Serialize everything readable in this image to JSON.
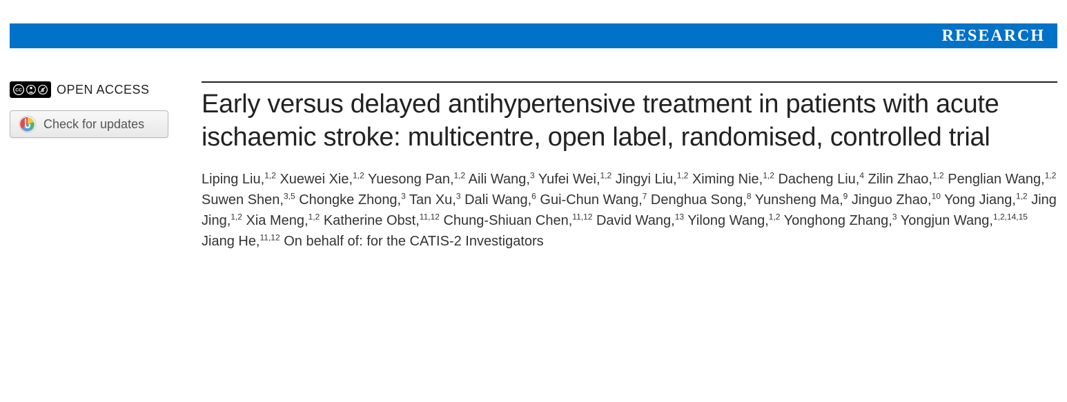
{
  "banner": {
    "label": "RESEARCH",
    "bg_color": "#0072c7",
    "text_color": "#ffffff"
  },
  "sidebar": {
    "open_access_label": "OPEN ACCESS",
    "cc_icons": [
      "cc",
      "by",
      "nc"
    ],
    "updates_button_label": "Check for updates"
  },
  "article": {
    "title": "Early versus delayed antihypertensive treatment in patients with acute ischaemic stroke: multicentre, open label, randomised, controlled trial",
    "authors": [
      {
        "name": "Liping Liu",
        "affil": "1,2"
      },
      {
        "name": "Xuewei Xie",
        "affil": "1,2"
      },
      {
        "name": "Yuesong Pan",
        "affil": "1,2"
      },
      {
        "name": "Aili Wang",
        "affil": "3"
      },
      {
        "name": "Yufei Wei",
        "affil": "1,2"
      },
      {
        "name": "Jingyi Liu",
        "affil": "1,2"
      },
      {
        "name": "Ximing Nie",
        "affil": "1,2"
      },
      {
        "name": "Dacheng Liu",
        "affil": "4"
      },
      {
        "name": "Zilin Zhao",
        "affil": "1,2"
      },
      {
        "name": "Penglian Wang",
        "affil": "1,2"
      },
      {
        "name": "Suwen Shen",
        "affil": "3,5"
      },
      {
        "name": "Chongke Zhong",
        "affil": "3"
      },
      {
        "name": "Tan Xu",
        "affil": "3"
      },
      {
        "name": "Dali Wang",
        "affil": "6"
      },
      {
        "name": "Gui-Chun Wang",
        "affil": "7"
      },
      {
        "name": "Denghua Song",
        "affil": "8"
      },
      {
        "name": "Yunsheng Ma",
        "affil": "9"
      },
      {
        "name": "Jinguo Zhao",
        "affil": "10"
      },
      {
        "name": "Yong Jiang",
        "affil": "1,2"
      },
      {
        "name": "Jing Jing",
        "affil": "1,2"
      },
      {
        "name": "Xia Meng",
        "affil": "1,2"
      },
      {
        "name": "Katherine Obst",
        "affil": "11,12"
      },
      {
        "name": "Chung-Shiuan Chen",
        "affil": "11,12"
      },
      {
        "name": "David Wang",
        "affil": "13"
      },
      {
        "name": "Yilong Wang",
        "affil": "1,2"
      },
      {
        "name": "Yonghong Zhang",
        "affil": "3"
      },
      {
        "name": "Yongjun Wang",
        "affil": "1,2,14,15"
      },
      {
        "name": "Jiang He",
        "affil": "11,12"
      }
    ],
    "suffix": "On behalf of: for the CATIS-2 Investigators"
  },
  "colors": {
    "text": "#222222",
    "rule": "#222222",
    "background": "#ffffff"
  }
}
